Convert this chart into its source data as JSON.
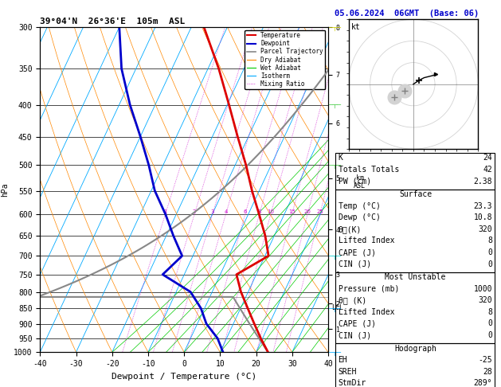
{
  "title_left": "39°04'N  26°36'E  105m  ASL",
  "title_right": "05.06.2024  06GMT  (Base: 06)",
  "xlabel": "Dewpoint / Temperature (°C)",
  "pressure_levels": [
    300,
    350,
    400,
    450,
    500,
    550,
    600,
    650,
    700,
    750,
    800,
    850,
    900,
    950,
    1000
  ],
  "temp_range": [
    -40,
    40
  ],
  "km_ticks": [
    1,
    2,
    3,
    4,
    5,
    6,
    7,
    8
  ],
  "km_pressures": [
    900,
    800,
    700,
    570,
    450,
    350,
    280,
    225
  ],
  "lcl_pressure": 815,
  "mixing_ratios": [
    1,
    2,
    3,
    4,
    6,
    8,
    10,
    15,
    20,
    25
  ],
  "isotherm_color": "#00aaff",
  "dry_adiabat_color": "#ff8800",
  "wet_adiabat_color": "#00cc00",
  "mixing_ratio_color": "#cc00cc",
  "temp_color": "#dd0000",
  "dewpoint_color": "#0000cc",
  "parcel_color": "#888888",
  "temp_profile_p": [
    1000,
    950,
    900,
    850,
    800,
    750,
    700,
    650,
    600,
    550,
    500,
    450,
    400,
    350,
    300
  ],
  "temp_profile_T": [
    23.3,
    19.5,
    15.8,
    12.0,
    8.0,
    4.5,
    11.0,
    7.5,
    3.0,
    -2.0,
    -7.0,
    -13.0,
    -19.5,
    -27.0,
    -36.5
  ],
  "dewp_profile_p": [
    1000,
    950,
    900,
    850,
    800,
    750,
    700,
    650,
    600,
    550,
    500,
    450,
    400,
    350,
    300
  ],
  "dewp_profile_T": [
    10.8,
    7.5,
    2.5,
    -1.0,
    -6.0,
    -16.0,
    -13.0,
    -18.0,
    -23.0,
    -29.0,
    -34.0,
    -40.0,
    -47.0,
    -54.0,
    -60.0
  ],
  "hodo_u": [
    0.0,
    1.5,
    3.0,
    5.0,
    7.0,
    9.0,
    10.5
  ],
  "hodo_v": [
    0.0,
    1.0,
    2.0,
    3.0,
    3.5,
    4.0,
    4.5
  ],
  "storm_u": 2.5,
  "storm_v": 1.8,
  "wind_barbs": [
    {
      "p": 1000,
      "u": 2,
      "v": 2,
      "color": "#00aaff"
    },
    {
      "p": 850,
      "u": 4,
      "v": 4,
      "color": "#00aaff"
    },
    {
      "p": 700,
      "u": 7,
      "v": 5,
      "color": "#00cccc"
    },
    {
      "p": 500,
      "u": 10,
      "v": 6,
      "color": "#44cc44"
    },
    {
      "p": 400,
      "u": 12,
      "v": 7,
      "color": "#44cc44"
    },
    {
      "p": 300,
      "u": 14,
      "v": 8,
      "color": "#cccc00"
    }
  ],
  "SKEW": 42
}
